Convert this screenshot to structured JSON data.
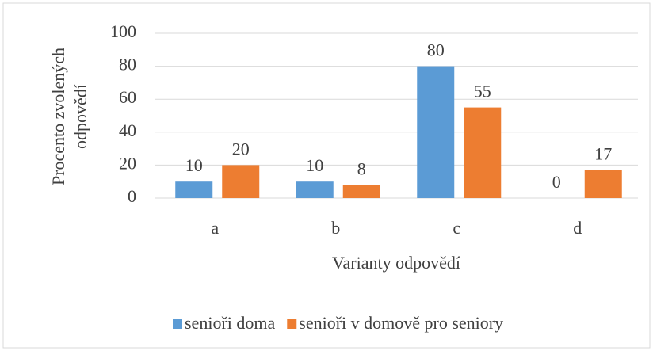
{
  "chart_data": {
    "type": "bar",
    "ylabel": [
      "Procento zvolených",
      "odpovědí"
    ],
    "xlabel": "Varianty odpovědí",
    "categories": [
      "a",
      "b",
      "c",
      "d"
    ],
    "series": [
      {
        "name": "senioři doma",
        "color": "#5b9bd5",
        "values": [
          10,
          10,
          80,
          0
        ]
      },
      {
        "name": "senioři v domově pro seniory",
        "color": "#ed7d31",
        "values": [
          20,
          8,
          55,
          17
        ]
      }
    ],
    "ylim": [
      0,
      100
    ],
    "yticks": [
      0,
      20,
      40,
      60,
      80,
      100
    ],
    "grid": true,
    "legend": "bottom"
  }
}
